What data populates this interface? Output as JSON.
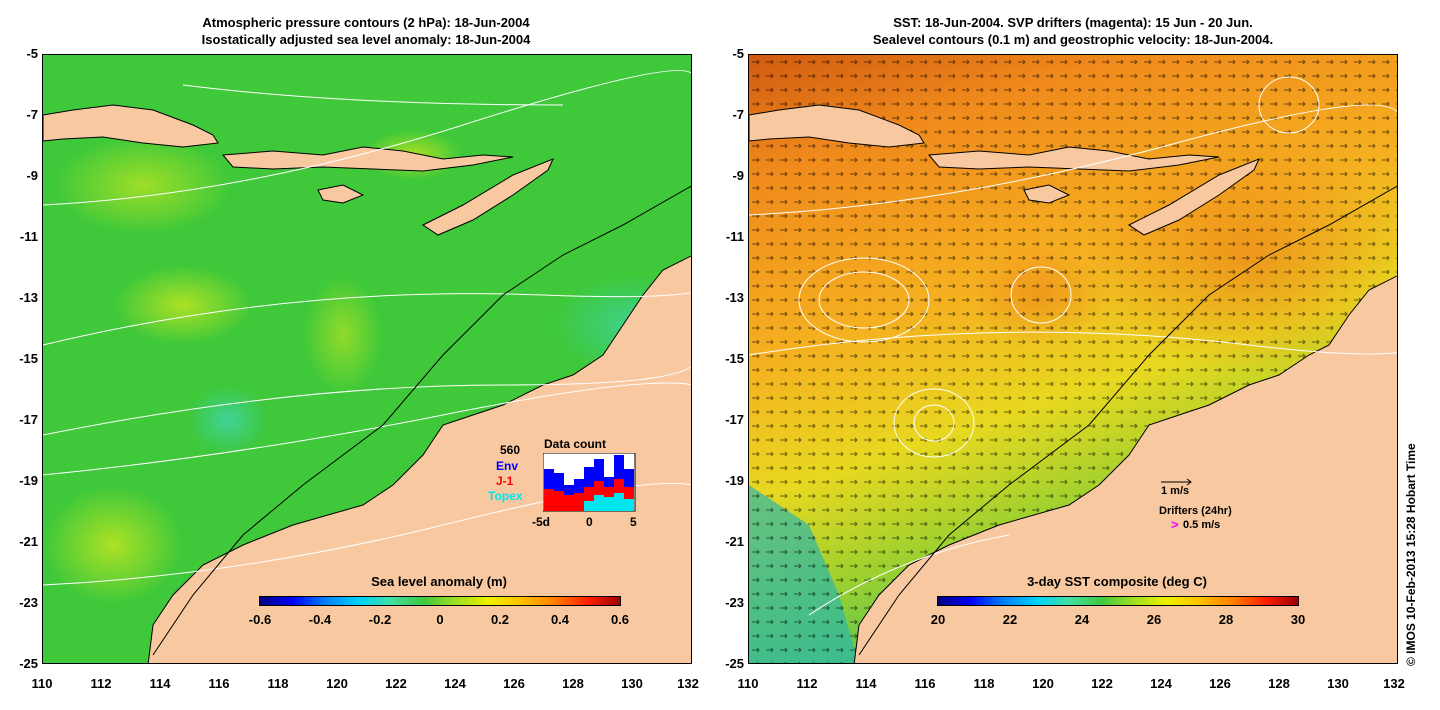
{
  "left_panel": {
    "title_line1": "Atmospheric pressure contours (2 hPa): 18-Jun-2004",
    "title_line2": "Isostatically adjusted sea level anomaly: 18-Jun-2004",
    "colorbar": {
      "title": "Sea level anomaly (m)",
      "ticks": [
        "-0.6",
        "-0.4",
        "-0.2",
        "0",
        "0.2",
        "0.4",
        "0.6"
      ]
    },
    "data_count": {
      "title": "Data count",
      "max_label": "560",
      "series": [
        {
          "name": "Env",
          "color": "#0000ff"
        },
        {
          "name": "J-1",
          "color": "#ff0000"
        },
        {
          "name": "Topex",
          "color": "#00e5ee"
        }
      ],
      "x_labels": [
        "-5d",
        "0",
        "5"
      ]
    }
  },
  "right_panel": {
    "title_line1": "SST: 18-Jun-2004. SVP drifters (magenta): 15 Jun - 20 Jun.",
    "title_line2": "Sealevel contours (0.1 m) and geostrophic velocity: 18-Jun-2004.",
    "scale_label": "1 m/s",
    "drifters_label": "Drifters (24hr)",
    "drifters_speed": "0.5 m/s",
    "colorbar": {
      "title": "3-day SST composite (deg C)",
      "ticks": [
        "20",
        "22",
        "24",
        "26",
        "28",
        "30"
      ]
    }
  },
  "y_ticks": [
    "-5",
    "-7",
    "-9",
    "-11",
    "-13",
    "-15",
    "-17",
    "-19",
    "-21",
    "-23",
    "-25"
  ],
  "x_ticks": [
    "110",
    "112",
    "114",
    "116",
    "118",
    "120",
    "122",
    "124",
    "126",
    "128",
    "130",
    "132"
  ],
  "credit": "© IMOS 10-Feb-2013 15:28 Hobart Time",
  "colors": {
    "land": "#f8c8a0",
    "sla_ocean": "#3ec83a",
    "sst_warm": "#f08a1c",
    "sst_mid": "#e8d820",
    "sst_cool": "#5ac84a"
  }
}
